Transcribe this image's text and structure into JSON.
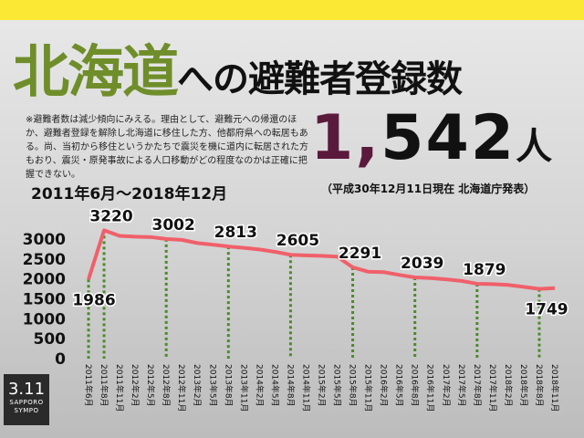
{
  "title_highlight": "北海道",
  "title_rest": "への避難者登録数",
  "note": "※避難者数は減少傾向にみえる。理由として、避難元への帰還のほか、避難者登録を解除し北海道に移住した方、他都府県への転居もある。尚、当初から移住というかたちで震災を機に道内に転居された方もおり、震災・原発事故による人口移動がどの程度なのかは正確に把握できない。",
  "headline_number": "1,542",
  "headline_unit": "人",
  "as_of": "（平成30年12月11日現在 北海道庁発表）",
  "logo": {
    "mark": "3.11",
    "line1": "SAPPORO",
    "line2": "SYMPO"
  },
  "chart_data": {
    "type": "line",
    "title": "2011年6月〜2018年12月",
    "categories": [
      "2011年6月",
      "2011年8月",
      "2011年11月",
      "2012年2月",
      "2012年5月",
      "2012年8月",
      "2012年11月",
      "2013年2月",
      "2013年5月",
      "2013年8月",
      "2013年11月",
      "2014年2月",
      "2014年5月",
      "2014年8月",
      "2014年11月",
      "2015年2月",
      "2015年5月",
      "2015年8月",
      "2015年11月",
      "2016年2月",
      "2016年5月",
      "2016年8月",
      "2016年11月",
      "2017年2月",
      "2017年5月",
      "2017年8月",
      "2017年11月",
      "2018年2月",
      "2018年5月",
      "2018年8月",
      "2018年11月"
    ],
    "series": [
      {
        "name": "避難者登録数",
        "color": "#f0606a",
        "values": [
          1986,
          3220,
          3080,
          3060,
          3050,
          3002,
          2980,
          2900,
          2860,
          2813,
          2780,
          2740,
          2680,
          2605,
          2590,
          2580,
          2560,
          2291,
          2180,
          2170,
          2100,
          2039,
          2020,
          1990,
          1950,
          1879,
          1870,
          1850,
          1800,
          1749,
          1770
        ],
        "value_labels": [
          "1986",
          "3220",
          null,
          null,
          null,
          "3002",
          null,
          null,
          null,
          "2813",
          null,
          null,
          null,
          "2605",
          null,
          null,
          null,
          "2291",
          null,
          null,
          null,
          "2039",
          null,
          null,
          null,
          "1879",
          null,
          null,
          null,
          "1749",
          null
        ]
      }
    ],
    "drop_line_color": "#4a8a2a",
    "ylim": [
      0,
      3000
    ],
    "yticks": [
      0,
      500,
      1000,
      1500,
      2000,
      2500,
      3000
    ],
    "grid": false
  }
}
